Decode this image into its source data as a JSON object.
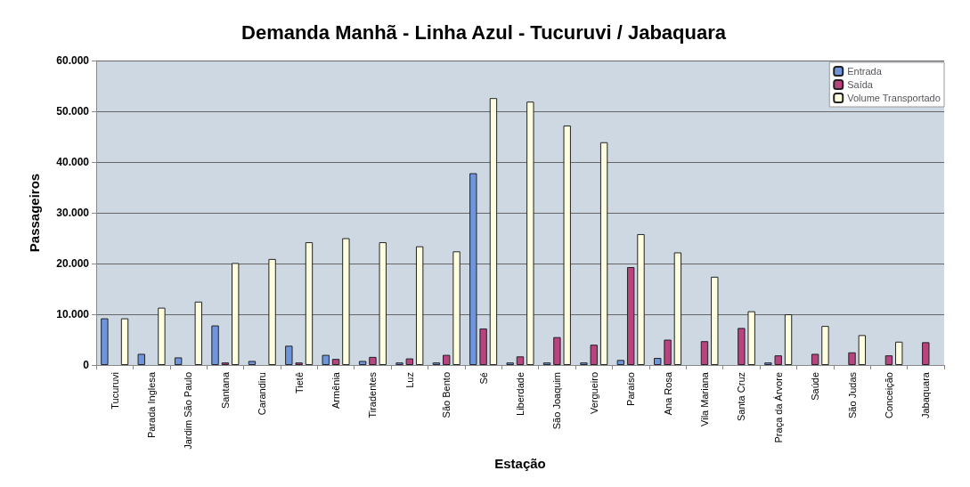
{
  "chart_data": {
    "type": "bar",
    "title": "Demanda Manhã - Linha Azul - Tucuruvi / Jabaquara",
    "xlabel": "Estação",
    "ylabel": "Passageiros",
    "categories": [
      "Tucuruvi",
      "Parada Inglesa",
      "Jardim São Paulo",
      "Santana",
      "Carandiru",
      "Tietê",
      "Armênia",
      "Tiradentes",
      "Luz",
      "São Bento",
      "Sé",
      "Liberdade",
      "São Joaquim",
      "Vergueiro",
      "Paraíso",
      "Ana Rosa",
      "Vila Mariana",
      "Santa Cruz",
      "Praça da Árvore",
      "Saúde",
      "São Judas",
      "Conceição",
      "Jabaquara"
    ],
    "series": [
      {
        "name": "Entrada",
        "color": "#6f95dc",
        "values": [
          9200,
          2200,
          1500,
          7800,
          800,
          3800,
          2000,
          800,
          500,
          500,
          37800,
          500,
          500,
          500,
          1000,
          1400,
          null,
          null,
          500,
          null,
          null,
          null,
          null
        ]
      },
      {
        "name": "Saída",
        "color": "#b8437e",
        "values": [
          null,
          null,
          null,
          500,
          null,
          500,
          1200,
          1600,
          1300,
          2000,
          7200,
          1700,
          5500,
          4000,
          19300,
          5000,
          4700,
          7300,
          1900,
          2200,
          2500,
          1900,
          4500
        ]
      },
      {
        "name": "Volume Transportado",
        "color": "#ffffe0",
        "values": [
          9200,
          11300,
          12500,
          20100,
          20900,
          24200,
          25000,
          24200,
          23400,
          22400,
          52600,
          51900,
          47200,
          43900,
          25800,
          22200,
          17400,
          10600,
          10000,
          7700,
          5900,
          4600,
          null
        ]
      }
    ],
    "ylim": [
      0,
      60000
    ],
    "yticks": [
      {
        "value": 0,
        "label": "0"
      },
      {
        "value": 10000,
        "label": "10.000"
      },
      {
        "value": 20000,
        "label": "20.000"
      },
      {
        "value": 30000,
        "label": "30.000"
      },
      {
        "value": 40000,
        "label": "40.000"
      },
      {
        "value": 50000,
        "label": "50.000"
      },
      {
        "value": 60000,
        "label": "60.000"
      }
    ],
    "grid": "y",
    "legend": "top right"
  }
}
